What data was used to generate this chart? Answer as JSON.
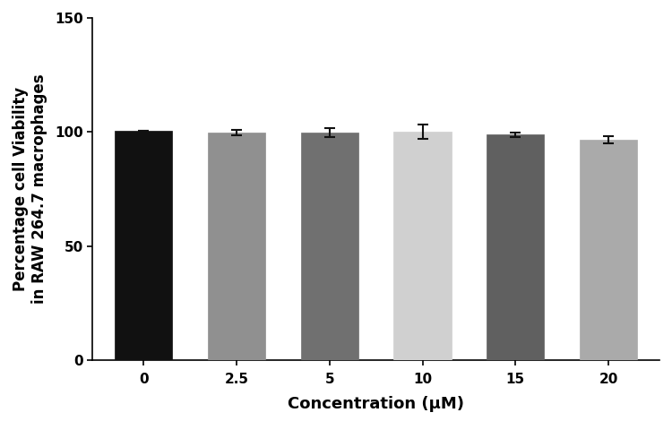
{
  "categories": [
    "0",
    "2.5",
    "5",
    "10",
    "15",
    "20"
  ],
  "values": [
    100.5,
    99.8,
    99.7,
    100.0,
    98.8,
    96.5
  ],
  "errors": [
    0.0,
    1.2,
    1.8,
    3.2,
    1.0,
    1.5
  ],
  "bar_colors": [
    "#111111",
    "#909090",
    "#707070",
    "#d0d0d0",
    "#606060",
    "#aaaaaa"
  ],
  "ylabel_line1": "Percentage cell Viability",
  "ylabel_line2": "in RAW 264.7 macrophages",
  "xlabel": "Concentration (μM)",
  "ylim": [
    0,
    150
  ],
  "yticks": [
    0,
    50,
    100,
    150
  ],
  "bar_width": 0.62,
  "capsize": 4,
  "ecolor": "#111111",
  "elinewidth": 1.5,
  "background_color": "#ffffff",
  "spine_color": "#000000",
  "tick_color": "#000000",
  "label_fontsize": 12,
  "tick_fontsize": 11,
  "xlabel_fontsize": 13,
  "error_capthick": 1.5
}
